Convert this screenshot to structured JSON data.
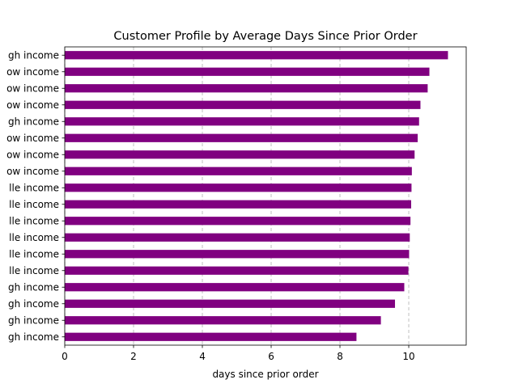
{
  "chart_data": {
    "type": "bar",
    "orientation": "horizontal",
    "title": "Customer Profile by Average Days Since Prior Order",
    "xlabel": "days since prior order",
    "ylabel": "",
    "xlim": [
      0,
      11.67
    ],
    "xticks": [
      0,
      2,
      4,
      6,
      8,
      10
    ],
    "grid": "x-dashed",
    "bar_color": "#800080",
    "categories": [
      "gh income",
      "gh income",
      "gh income",
      "gh income",
      "lle income",
      "lle income",
      "lle income",
      "lle income",
      "lle income",
      "lle income",
      "ow income",
      "ow income",
      "ow income",
      "gh income",
      "ow income",
      "ow income",
      "ow income",
      "gh income"
    ],
    "values": [
      8.48,
      9.19,
      9.6,
      9.87,
      9.99,
      10.01,
      10.03,
      10.05,
      10.07,
      10.08,
      10.09,
      10.17,
      10.26,
      10.3,
      10.34,
      10.55,
      10.6,
      11.14
    ]
  }
}
